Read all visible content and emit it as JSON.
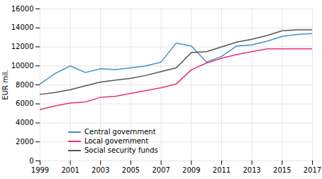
{
  "chart_data": {
    "type": "line",
    "x": [
      1999,
      2000,
      2001,
      2002,
      2003,
      2004,
      2005,
      2006,
      2007,
      2008,
      2009,
      2010,
      2011,
      2012,
      2013,
      2014,
      2015,
      2016,
      2017
    ],
    "series": [
      {
        "name": "Central government",
        "color": "#4393c9",
        "values": [
          8100,
          9200,
          10000,
          9300,
          9700,
          9600,
          9800,
          10000,
          10400,
          12400,
          12100,
          10400,
          11000,
          12100,
          12200,
          12600,
          13100,
          13300,
          13400
        ]
      },
      {
        "name": "Local government",
        "color": "#e8317e",
        "values": [
          5400,
          5800,
          6100,
          6200,
          6700,
          6800,
          7100,
          7400,
          7700,
          8100,
          9600,
          10300,
          10800,
          11200,
          11500,
          11800,
          11800,
          11800,
          11800
        ]
      },
      {
        "name": "Social security funds",
        "color": "#555555",
        "values": [
          7000,
          7200,
          7500,
          7900,
          8300,
          8500,
          8700,
          9000,
          9400,
          9800,
          11400,
          11500,
          12000,
          12500,
          12800,
          13200,
          13700,
          13800,
          13800
        ]
      }
    ],
    "xlim": [
      1999,
      2017
    ],
    "xticks": [
      1999,
      2001,
      2003,
      2005,
      2007,
      2009,
      2011,
      2013,
      2015,
      2017
    ],
    "ylim": [
      0,
      16000
    ],
    "yticks": [
      0,
      2000,
      4000,
      6000,
      8000,
      10000,
      12000,
      14000,
      16000
    ],
    "ylabel": "EUR mil.",
    "grid": true,
    "legend": "lower left"
  }
}
